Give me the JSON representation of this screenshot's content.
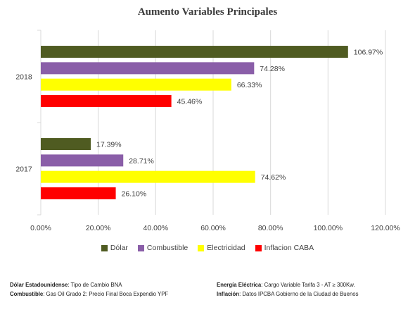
{
  "chart_data": {
    "type": "bar",
    "orientation": "horizontal",
    "title": "Aumento Variables Principales",
    "categories": [
      "2018",
      "2017"
    ],
    "series": [
      {
        "name": "Dólar",
        "color": "#4f5b21",
        "values": [
          106.97,
          17.39
        ],
        "labels": [
          "106.97%",
          "17.39%"
        ]
      },
      {
        "name": "Combustible",
        "color": "#8a5ea8",
        "values": [
          74.28,
          28.71
        ],
        "labels": [
          "74.28%",
          "28.71%"
        ]
      },
      {
        "name": "Electricidad",
        "color": "#ffff00",
        "values": [
          66.33,
          74.62
        ],
        "labels": [
          "66.33%",
          "74.62%"
        ]
      },
      {
        "name": "Inflacion CABA",
        "color": "#ff0000",
        "values": [
          45.46,
          26.1
        ],
        "labels": [
          "45.46%",
          "26.10%"
        ]
      }
    ],
    "xlim": [
      0,
      120
    ],
    "xticks": [
      "0.00%",
      "20.00%",
      "40.00%",
      "60.00%",
      "80.00%",
      "100.00%",
      "120.00%"
    ],
    "grid": true,
    "legend_position": "bottom"
  },
  "notes": {
    "left": [
      {
        "label": "Dólar Estadounidense",
        "text": ": Tipo de Cambio BNA"
      },
      {
        "label": "Combustible",
        "text": ": Gas Oil Grado 2: Precio Final Boca Expendio YPF"
      }
    ],
    "right": [
      {
        "label": "Energía Eléctrica",
        "text": ": Cargo Variable Tarifa 3  - AT ≥ 300Kw."
      },
      {
        "label": "Inflación",
        "text": ": Datos IPCBA Gobierno de la Ciudad de Buenos"
      }
    ]
  }
}
